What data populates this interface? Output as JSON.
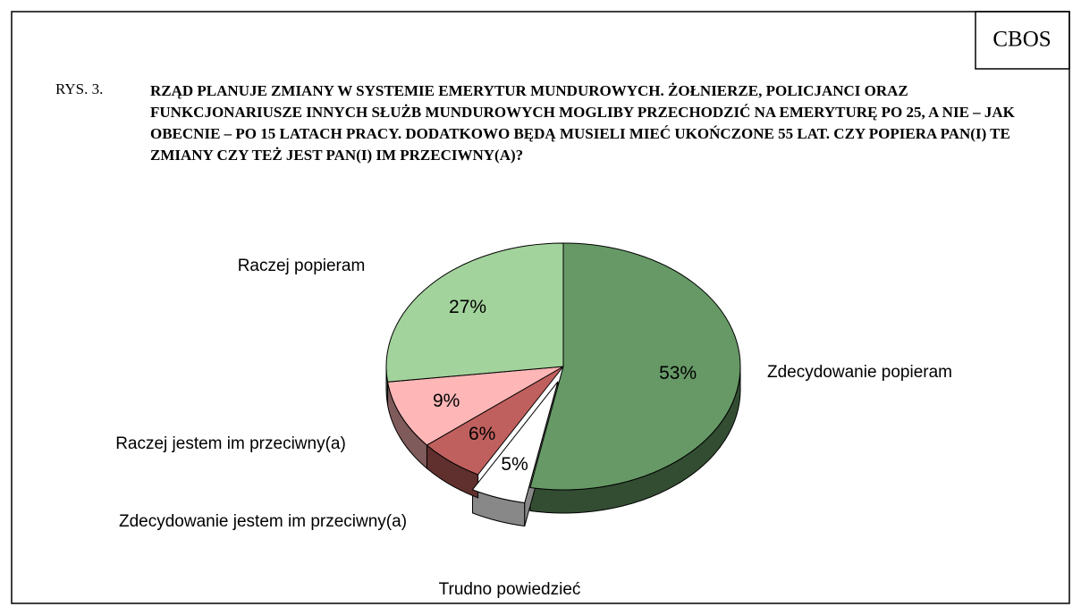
{
  "chart_data": {
    "type": "pie",
    "source": "CBOS",
    "figure_label": "RYS. 3.",
    "title": "RZĄD PLANUJE ZMIANY W SYSTEMIE EMERYTUR MUNDUROWYCH. ŻOŁNIERZE, POLICJANCI ORAZ FUNKCJONARIUSZE INNYCH SŁUŻB MUNDUROWYCH MOGLIBY PRZECHODZIĆ NA EMERYTURĘ PO 25, A NIE – JAK OBECNIE – PO 15 LATACH PRACY. DODATKOWO BĘDĄ MUSIELI MIEĆ UKOŃCZONE 55 LAT. CZY POPIERA PAN(I) TE ZMIANY CZY TEŻ JEST PAN(I) IM PRZECIWNY(A)?",
    "categories": [
      "Zdecydowanie popieram",
      "Trudno powiedzieć",
      "Zdecydowanie jestem im przeciwny(a)",
      "Raczej jestem im przeciwny(a)",
      "Raczej popieram"
    ],
    "values": [
      53,
      5,
      6,
      9,
      27
    ],
    "value_labels": [
      "53%",
      "5%",
      "6%",
      "9%",
      "27%"
    ],
    "colors": [
      "#669966",
      "#ffffff",
      "#c0605e",
      "#ffb6b6",
      "#a3d39c"
    ],
    "explode": [
      false,
      true,
      false,
      false,
      false
    ]
  }
}
